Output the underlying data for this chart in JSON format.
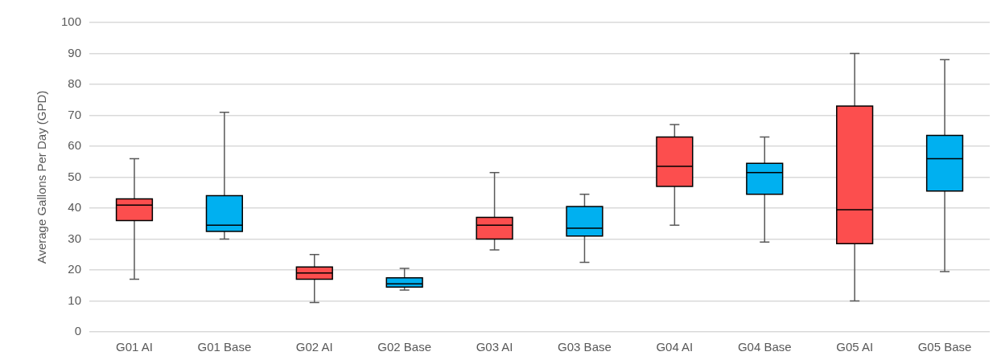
{
  "chart_data": {
    "type": "box",
    "ylabel": "Average Gallons Per Day (GPD)",
    "categories": [
      "G01 AI",
      "G01 Base",
      "G02 AI",
      "G02 Base",
      "G03 AI",
      "G03 Base",
      "G04 AI",
      "G04 Base",
      "G05 AI",
      "G05 Base"
    ],
    "colors": [
      "#fc4e4e",
      "#00b0f0",
      "#fc4e4e",
      "#00b0f0",
      "#fc4e4e",
      "#00b0f0",
      "#fc4e4e",
      "#00b0f0",
      "#fc4e4e",
      "#00b0f0"
    ],
    "boxes": [
      {
        "low": 17,
        "q1": 36,
        "median": 41,
        "q3": 43,
        "high": 56
      },
      {
        "low": 30,
        "q1": 32.5,
        "median": 34.5,
        "q3": 44,
        "high": 71
      },
      {
        "low": 9.5,
        "q1": 17,
        "median": 19,
        "q3": 21,
        "high": 25
      },
      {
        "low": 13.5,
        "q1": 14.5,
        "median": 15.5,
        "q3": 17.5,
        "high": 20.5
      },
      {
        "low": 26.5,
        "q1": 30,
        "median": 34.5,
        "q3": 37,
        "high": 51.5
      },
      {
        "low": 22.5,
        "q1": 31,
        "median": 33.5,
        "q3": 40.5,
        "high": 44.5
      },
      {
        "low": 34.5,
        "q1": 47,
        "median": 53.5,
        "q3": 63,
        "high": 67
      },
      {
        "low": 29,
        "q1": 44.5,
        "median": 51.5,
        "q3": 54.5,
        "high": 63
      },
      {
        "low": 10,
        "q1": 28.5,
        "median": 39.5,
        "q3": 73,
        "high": 90
      },
      {
        "low": 19.5,
        "q1": 45.5,
        "median": 56,
        "q3": 63.5,
        "high": 88
      }
    ],
    "ylim": [
      0,
      100
    ],
    "yticks": [
      0,
      10,
      20,
      30,
      40,
      50,
      60,
      70,
      80,
      90,
      100
    ],
    "grid": "y",
    "legend": false
  }
}
